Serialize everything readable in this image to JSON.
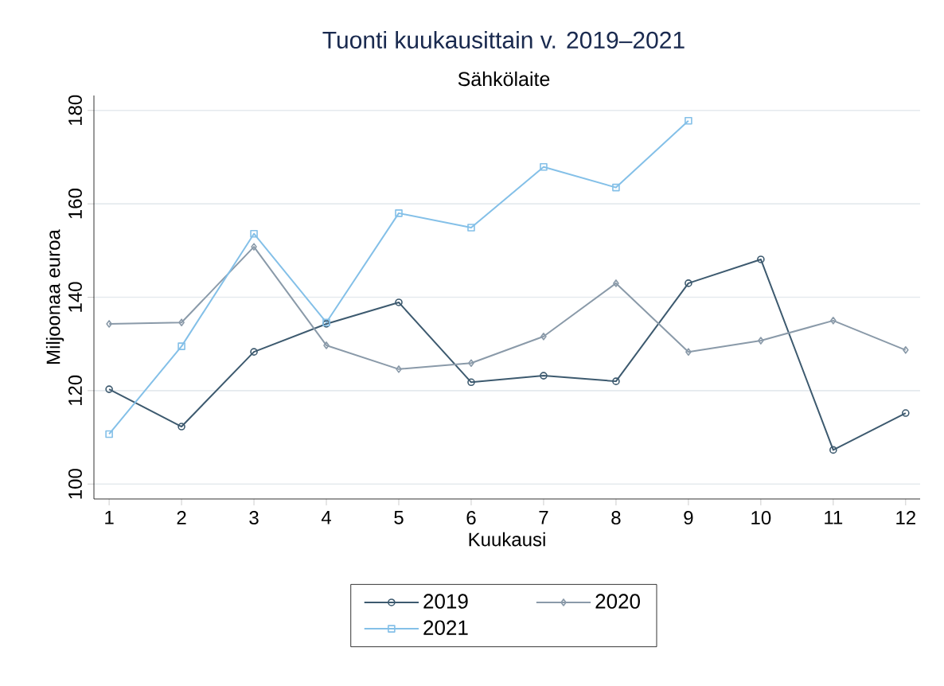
{
  "chart_data": {
    "type": "line",
    "title": "Tuonti kuukausittain v. 2019–2021",
    "subtitle": "Sähkölaite",
    "xlabel": "Kuukausi",
    "ylabel": "Miljoonaa euroa",
    "x": [
      1,
      2,
      3,
      4,
      5,
      6,
      7,
      8,
      9,
      10,
      11,
      12
    ],
    "series": [
      {
        "name": "2019",
        "color": "#3d5a6f",
        "marker": "circle",
        "values": [
          120.3,
          112.3,
          128.3,
          134.3,
          138.9,
          121.8,
          123.2,
          122.0,
          143.0,
          148.1,
          107.3,
          115.2
        ]
      },
      {
        "name": "2020",
        "color": "#8a9aa9",
        "marker": "diamond",
        "values": [
          134.3,
          134.6,
          150.8,
          129.7,
          124.6,
          125.9,
          131.6,
          143.0,
          128.3,
          130.7,
          135.0,
          128.7
        ]
      },
      {
        "name": "2021",
        "color": "#84c0e8",
        "marker": "square",
        "values": [
          110.7,
          129.5,
          153.6,
          134.6,
          158.0,
          154.9,
          167.9,
          163.5,
          177.8,
          null,
          null,
          null
        ]
      }
    ],
    "xlim": [
      0.79,
      12.2
    ],
    "ylim": [
      96.8,
      183.2
    ],
    "xticks": [
      1,
      2,
      3,
      4,
      5,
      6,
      7,
      8,
      9,
      10,
      11,
      12
    ],
    "yticks": [
      100,
      120,
      140,
      160,
      180
    ],
    "grid": "y",
    "legend": "bottom",
    "line_style": "solid"
  }
}
